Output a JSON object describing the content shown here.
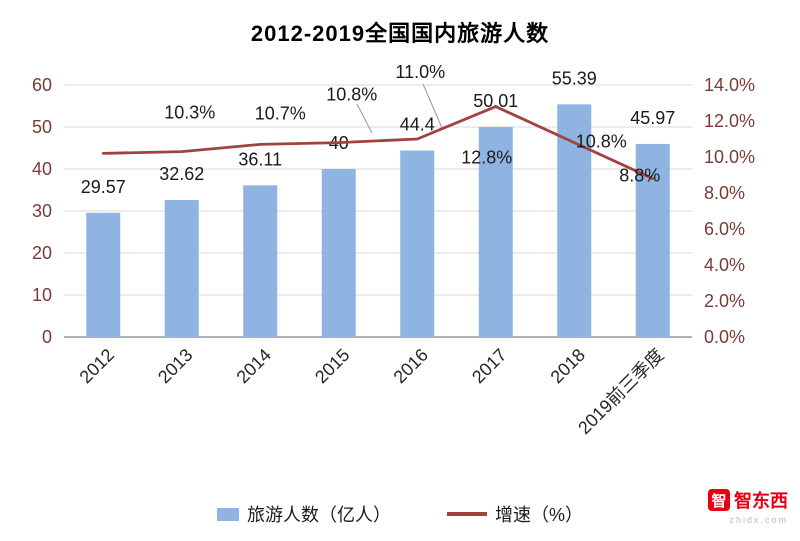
{
  "title": "2012-2019全国国内旅游人数",
  "chart_data": {
    "type": "combo-bar-line",
    "title": "2012-2019全国国内旅游人数",
    "categories": [
      "2012",
      "2013",
      "2014",
      "2015",
      "2016",
      "2017",
      "2018",
      "2019前三季度"
    ],
    "series": [
      {
        "name": "旅游人数（亿人）",
        "type": "bar",
        "axis": "left",
        "color": "#8fb4e1",
        "values": [
          29.57,
          32.62,
          36.11,
          40,
          44.4,
          50.01,
          55.39,
          45.97
        ],
        "labels": [
          "29.57",
          "32.62",
          "36.11",
          "40",
          "44.4",
          "50.01",
          "55.39",
          "45.97"
        ]
      },
      {
        "name": "增速（%）",
        "type": "line",
        "axis": "right",
        "color": "#a2423d",
        "values": [
          10.2,
          10.3,
          10.7,
          10.8,
          11.0,
          12.8,
          10.8,
          8.8
        ],
        "labels": [
          "",
          "10.3%",
          "10.7%",
          "10.8%",
          "11.0%",
          "12.8%",
          "10.8%",
          "8.8%"
        ]
      }
    ],
    "left_axis": {
      "min": 0,
      "max": 60,
      "step": 10,
      "tick_labels": [
        "60",
        "50",
        "40",
        "30",
        "20",
        "10",
        "0"
      ]
    },
    "right_axis": {
      "min": 0,
      "max": 14,
      "step": 2,
      "tick_labels": [
        "14.0%",
        "12.0%",
        "10.0%",
        "8.0%",
        "6.0%",
        "4.0%",
        "2.0%",
        "0.0%"
      ]
    },
    "grid": true,
    "legend_position": "bottom",
    "colors": {
      "tick_label": "#7a3b35",
      "category_label": "#262626",
      "data_label": "#1a1a1a",
      "gridline": "#d9d9d9",
      "axis_line": "#808080",
      "leader_line": "#9a9a9a"
    }
  },
  "legend": {
    "items": [
      {
        "label": "旅游人数（亿人）",
        "swatch": "bar"
      },
      {
        "label": "增速（%）",
        "swatch": "line"
      }
    ]
  },
  "watermark": {
    "logo_char": "智",
    "brand": "智东西",
    "url": "zhidx.com",
    "color": "#e60012"
  }
}
